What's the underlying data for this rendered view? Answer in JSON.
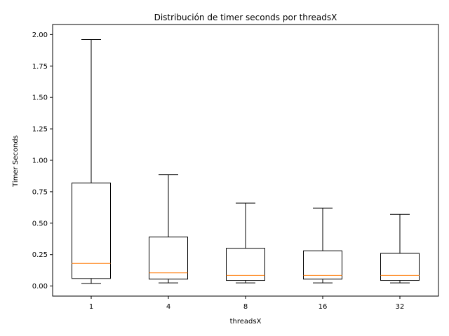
{
  "chart_data": {
    "type": "boxplot",
    "title": "Distribución de timer seconds por threadsX",
    "xlabel": "threadsX",
    "ylabel": "Timer Seconds",
    "ylim": [
      -0.08,
      2.08
    ],
    "yticks": [
      0.0,
      0.25,
      0.5,
      0.75,
      1.0,
      1.25,
      1.5,
      1.75,
      2.0
    ],
    "ytick_labels": [
      "0.00",
      "0.25",
      "0.50",
      "0.75",
      "1.00",
      "1.25",
      "1.50",
      "1.75",
      "2.00"
    ],
    "categories": [
      "1",
      "4",
      "8",
      "16",
      "32"
    ],
    "boxes": [
      {
        "label": "1",
        "whisker_low": 0.02,
        "q1": 0.06,
        "median": 0.18,
        "q3": 0.82,
        "whisker_high": 1.96
      },
      {
        "label": "4",
        "whisker_low": 0.025,
        "q1": 0.055,
        "median": 0.105,
        "q3": 0.39,
        "whisker_high": 0.885
      },
      {
        "label": "8",
        "whisker_low": 0.025,
        "q1": 0.045,
        "median": 0.085,
        "q3": 0.3,
        "whisker_high": 0.66
      },
      {
        "label": "16",
        "whisker_low": 0.025,
        "q1": 0.055,
        "median": 0.085,
        "q3": 0.28,
        "whisker_high": 0.62
      },
      {
        "label": "32",
        "whisker_low": 0.025,
        "q1": 0.045,
        "median": 0.085,
        "q3": 0.26,
        "whisker_high": 0.57
      }
    ],
    "colors": {
      "box": "#000000",
      "median": "#ff7f0e",
      "axis": "#000000"
    }
  }
}
